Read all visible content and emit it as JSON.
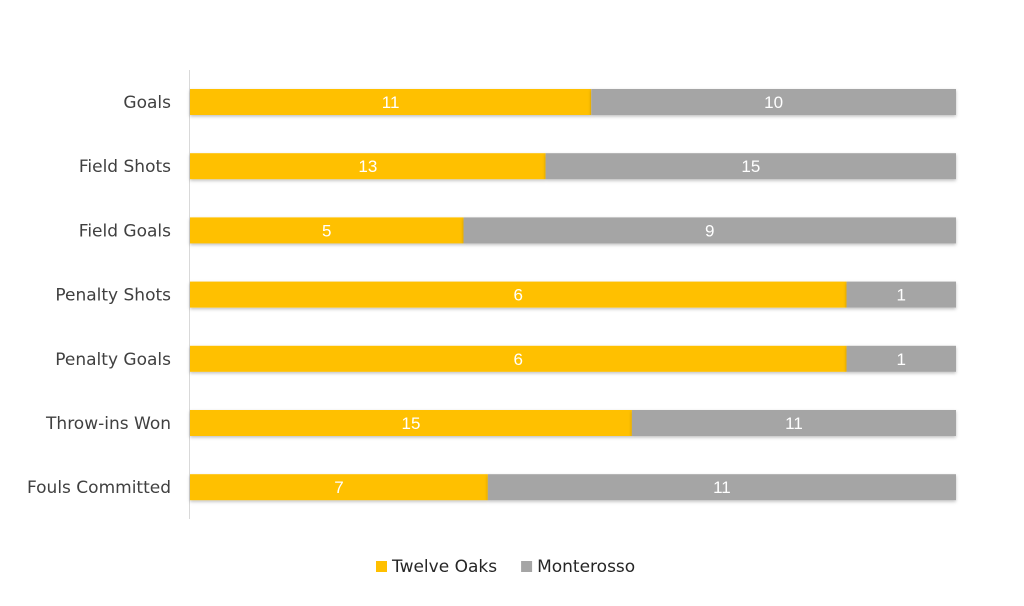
{
  "chart_data": {
    "type": "bar",
    "orientation": "horizontal",
    "stacked": "100%",
    "title": "",
    "xlabel": "",
    "ylabel": "",
    "categories": [
      "Goals",
      "Field Shots",
      "Field Goals",
      "Penalty Shots",
      "Penalty Goals",
      "Throw-ins Won",
      "Fouls Committed"
    ],
    "series": [
      {
        "name": "Twelve Oaks",
        "values": [
          11,
          13,
          5,
          6,
          6,
          15,
          7
        ],
        "color": "#FFC000"
      },
      {
        "name": "Monterosso",
        "values": [
          10,
          15,
          9,
          1,
          1,
          11,
          11
        ],
        "color": "#A5A5A5"
      }
    ],
    "data_labels": true,
    "legend": "bottom",
    "grid": false
  }
}
